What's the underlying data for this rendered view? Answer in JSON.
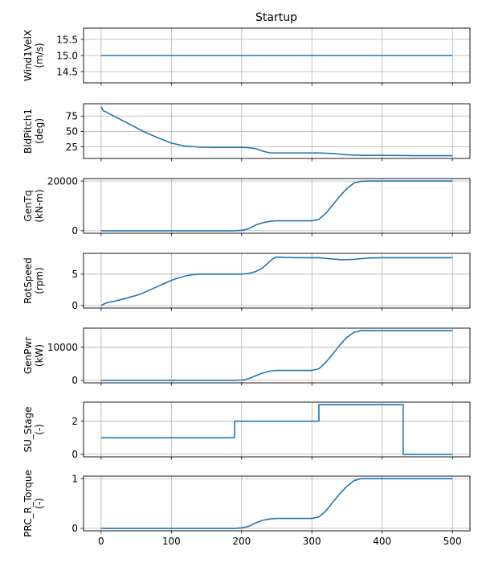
{
  "chart_data": {
    "type": "line",
    "title": "Startup",
    "xlim": [
      -25,
      525
    ],
    "xticks": [
      0,
      100,
      200,
      300,
      400,
      500
    ],
    "grid": true,
    "line_color": "#1f77b4",
    "panels": [
      {
        "name": "Wind1VelX",
        "ylabel_lines": [
          "Wind1VelX",
          "(m/s)"
        ],
        "ylim": [
          14.15,
          15.85
        ],
        "yticks": [
          14.5,
          15.0,
          15.5
        ],
        "ytick_labels": [
          "14.5",
          "15.0",
          "15.5"
        ],
        "show_x_tick_labels": false,
        "x": [
          0,
          500
        ],
        "y": [
          15.0,
          15.0
        ]
      },
      {
        "name": "BldPitch1",
        "ylabel_lines": [
          "BldPitch1",
          "(deg)"
        ],
        "ylim": [
          6,
          95
        ],
        "yticks": [
          25,
          50,
          75
        ],
        "ytick_labels": [
          "25",
          "50",
          "75"
        ],
        "show_x_tick_labels": false,
        "x": [
          0,
          3,
          8,
          20,
          40,
          60,
          80,
          100,
          120,
          140,
          160,
          180,
          200,
          210,
          220,
          230,
          240,
          250,
          280,
          310,
          330,
          350,
          370,
          400,
          450,
          500
        ],
        "y": [
          90,
          84,
          81,
          74,
          62,
          50,
          40,
          31,
          26,
          24.5,
          24,
          24,
          24,
          23.5,
          22,
          18,
          15,
          15,
          15,
          15,
          14,
          12,
          11,
          11,
          10.5,
          10.5
        ]
      },
      {
        "name": "GenTq",
        "ylabel_lines": [
          "GenTq",
          "(kN-m)"
        ],
        "ylim": [
          -1000,
          21000
        ],
        "yticks": [
          0,
          20000
        ],
        "ytick_labels": [
          "0",
          "20000"
        ],
        "show_x_tick_labels": false,
        "x": [
          0,
          190,
          200,
          210,
          220,
          230,
          240,
          250,
          260,
          300,
          310,
          320,
          330,
          340,
          350,
          360,
          370,
          380,
          500
        ],
        "y": [
          0,
          0,
          150,
          800,
          2300,
          3200,
          3800,
          4000,
          4000,
          4000,
          4600,
          7000,
          10500,
          14000,
          17000,
          19200,
          19900,
          20000,
          20000
        ]
      },
      {
        "name": "RotSpeed",
        "ylabel_lines": [
          "RotSpeed",
          "(rpm)"
        ],
        "ylim": [
          -0.4,
          8.3
        ],
        "yticks": [
          0,
          5
        ],
        "ytick_labels": [
          "0",
          "5"
        ],
        "show_x_tick_labels": false,
        "x": [
          0,
          5,
          10,
          20,
          30,
          40,
          50,
          60,
          70,
          80,
          90,
          100,
          110,
          120,
          130,
          140,
          150,
          160,
          170,
          180,
          190,
          200,
          210,
          220,
          230,
          240,
          245,
          250,
          260,
          280,
          300,
          310,
          320,
          330,
          340,
          350,
          360,
          370,
          380,
          400,
          450,
          500
        ],
        "y": [
          0,
          0.3,
          0.5,
          0.7,
          1.0,
          1.3,
          1.6,
          2.0,
          2.5,
          3.0,
          3.5,
          4.0,
          4.4,
          4.7,
          4.9,
          5.0,
          5.0,
          5.0,
          5.0,
          5.0,
          5.0,
          5.0,
          5.1,
          5.4,
          6.0,
          7.0,
          7.5,
          7.7,
          7.65,
          7.6,
          7.6,
          7.6,
          7.5,
          7.4,
          7.3,
          7.3,
          7.35,
          7.45,
          7.55,
          7.6,
          7.6,
          7.6
        ]
      },
      {
        "name": "GenPwr",
        "ylabel_lines": [
          "GenPwr",
          "(kW)"
        ],
        "ylim": [
          -750,
          15750
        ],
        "yticks": [
          0,
          10000
        ],
        "ytick_labels": [
          "0",
          "10000"
        ],
        "show_x_tick_labels": false,
        "x": [
          0,
          190,
          200,
          210,
          220,
          230,
          240,
          250,
          260,
          300,
          310,
          320,
          330,
          340,
          350,
          360,
          370,
          380,
          500
        ],
        "y": [
          0,
          0,
          100,
          500,
          1400,
          2200,
          2800,
          3000,
          3000,
          3000,
          3500,
          5500,
          8000,
          10700,
          13000,
          14500,
          15000,
          15000,
          15000
        ]
      },
      {
        "name": "SU_Stage",
        "ylabel_lines": [
          "SU_Stage",
          "(-)"
        ],
        "ylim": [
          -0.15,
          3.15
        ],
        "yticks": [
          0,
          2
        ],
        "ytick_labels": [
          "0",
          "2"
        ],
        "show_x_tick_labels": false,
        "x": [
          0,
          190,
          190,
          310,
          310,
          430,
          430,
          500
        ],
        "y": [
          1,
          1,
          2,
          2,
          3,
          3,
          0,
          0
        ]
      },
      {
        "name": "PRC_R_Torque",
        "ylabel_lines": [
          "PRC_R_Torque",
          "(-)"
        ],
        "ylim": [
          -0.05,
          1.05
        ],
        "yticks": [
          0,
          1
        ],
        "ytick_labels": [
          "0",
          "1"
        ],
        "show_x_tick_labels": true,
        "x": [
          0,
          190,
          200,
          210,
          220,
          230,
          240,
          250,
          260,
          300,
          310,
          320,
          330,
          340,
          350,
          360,
          370,
          380,
          500
        ],
        "y": [
          0,
          0,
          0.01,
          0.04,
          0.11,
          0.16,
          0.19,
          0.2,
          0.2,
          0.2,
          0.23,
          0.35,
          0.53,
          0.7,
          0.85,
          0.96,
          1.0,
          1.0,
          1.0
        ]
      }
    ]
  }
}
